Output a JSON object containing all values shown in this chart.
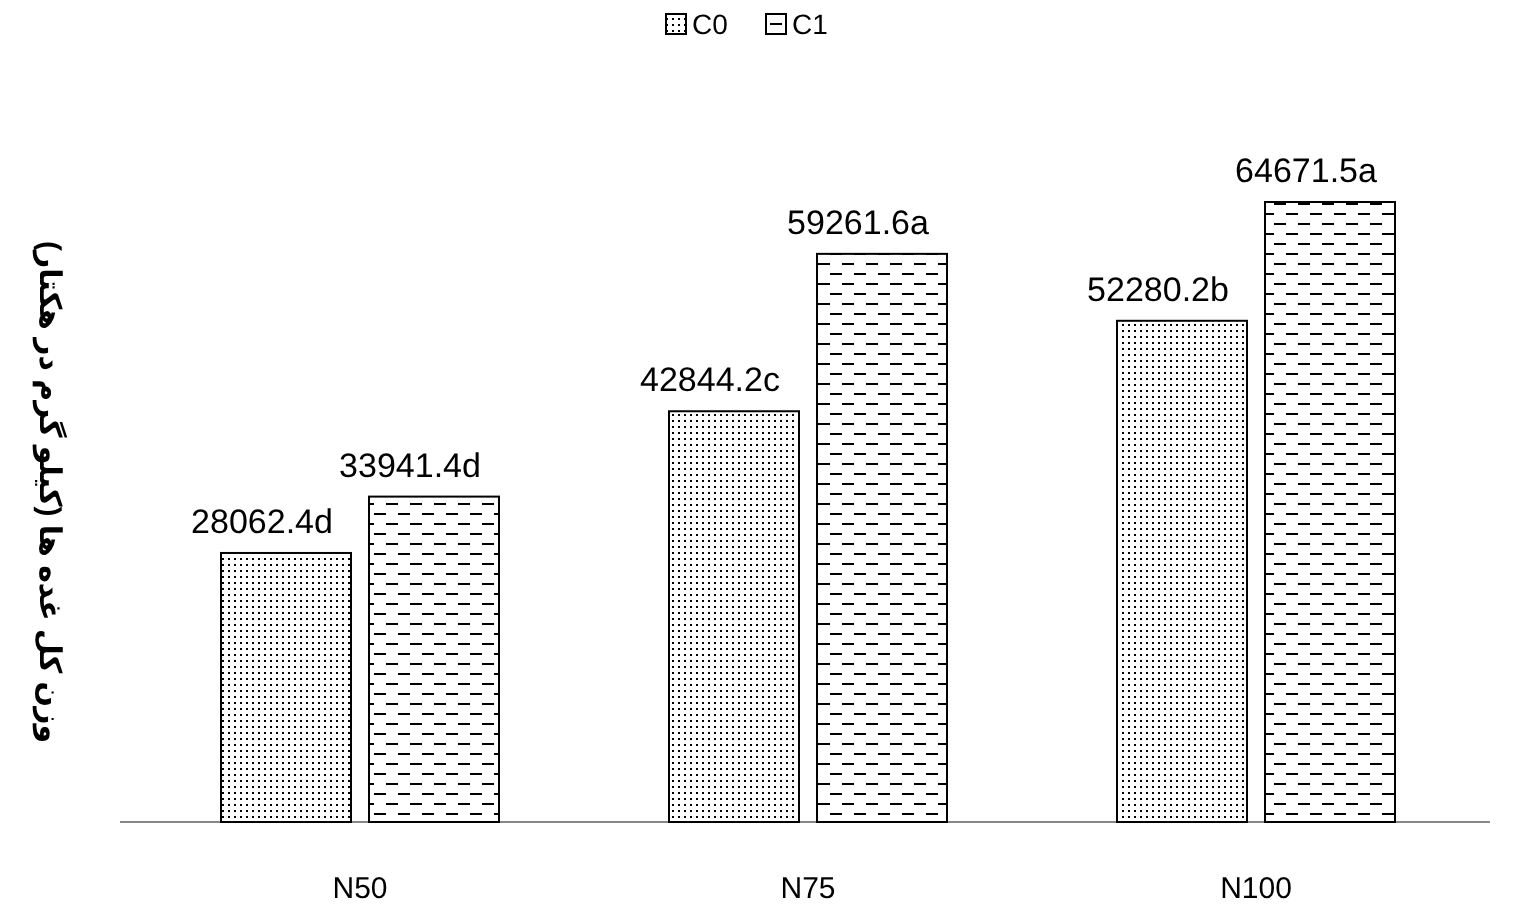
{
  "chart_data": {
    "type": "bar",
    "ylabel": "وزن کل غده ها (کیلو گرم در هکتار)",
    "categories": [
      "N50",
      "N75",
      "N100"
    ],
    "legend": "top",
    "series": [
      {
        "name": "C0",
        "color": "#000000",
        "values": [
          28062.4,
          42844.2,
          52280.2
        ],
        "value_labels": [
          "28062.4d",
          "42844.2c",
          "52280.2b"
        ]
      },
      {
        "name": "C1",
        "color": "#000000",
        "values": [
          33941.4,
          59261.6,
          64671.5
        ],
        "value_labels": [
          "33941.4d",
          "59261.6a",
          "64671.5a"
        ]
      }
    ]
  }
}
